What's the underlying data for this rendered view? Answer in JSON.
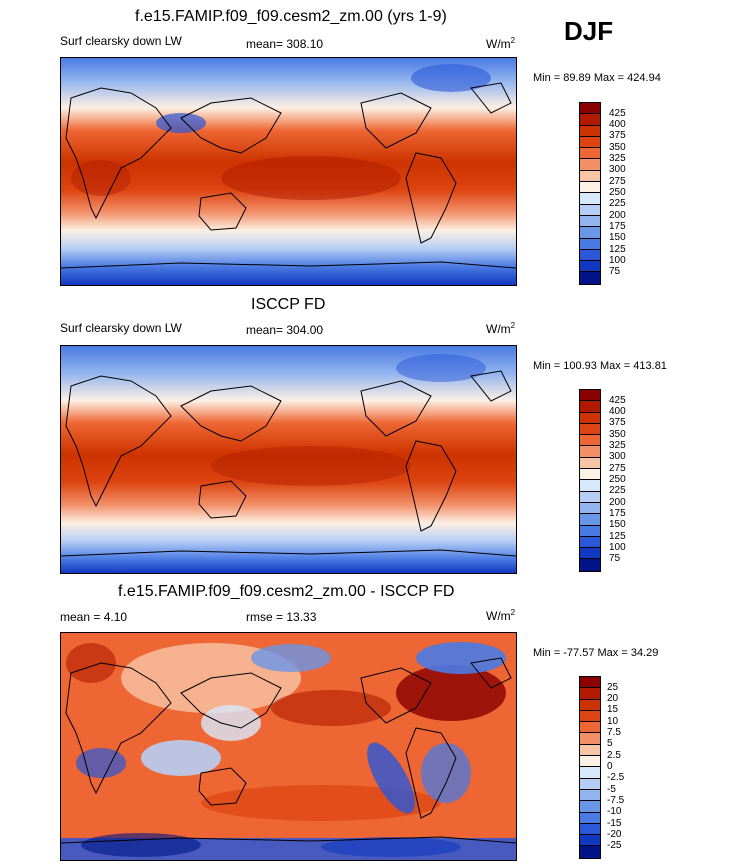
{
  "header": {
    "season": "DJF"
  },
  "colors": {
    "abs_scale": [
      "#8b0000",
      "#b01a00",
      "#cc3300",
      "#dd4411",
      "#ee6633",
      "#f2906a",
      "#f8c4a6",
      "#fdf0e4",
      "#d8e8fb",
      "#b6cef5",
      "#92b4ef",
      "#6a96e8",
      "#4a7ae3",
      "#2a58d8",
      "#1038c0",
      "#001488"
    ],
    "diff_scale": [
      "#8b0000",
      "#b01a00",
      "#cc3300",
      "#dd4411",
      "#ee6633",
      "#f2906a",
      "#f8c4a6",
      "#fdf0e4",
      "#d8e8fb",
      "#b6cef5",
      "#92b4ef",
      "#6a96e8",
      "#4a7ae3",
      "#2a58d8",
      "#1038c0",
      "#001488"
    ]
  },
  "panels": [
    {
      "title": "f.e15.FAMIP.f09_f09.cesm2_zm.00 (yrs 1-9)",
      "left_label": "Surf clearsky down LW",
      "center_label": "mean= 308.10",
      "units": "W/m",
      "units_sup": "2",
      "minmax": "Min =  89.89 Max = 424.94",
      "colorbar_labels": [
        "425",
        "400",
        "375",
        "350",
        "325",
        "300",
        "275",
        "250",
        "225",
        "200",
        "175",
        "150",
        "125",
        "100",
        "75"
      ]
    },
    {
      "title": "ISCCP FD",
      "left_label": "Surf clearsky down LW",
      "center_label": "mean= 304.00",
      "units": "W/m",
      "units_sup": "2",
      "minmax": "Min = 100.93 Max = 413.81",
      "colorbar_labels": [
        "425",
        "400",
        "375",
        "350",
        "325",
        "300",
        "275",
        "250",
        "225",
        "200",
        "175",
        "150",
        "125",
        "100",
        "75"
      ]
    },
    {
      "title": "f.e15.FAMIP.f09_f09.cesm2_zm.00 - ISCCP FD",
      "left_label": "mean =   4.10",
      "center_label": "rmse =  13.33",
      "units": "W/m",
      "units_sup": "2",
      "minmax": "Min = -77.57 Max =  34.29",
      "colorbar_labels": [
        "25",
        "20",
        "15",
        "10",
        "7.5",
        "5",
        "2.5",
        "0",
        "-2.5",
        "-5",
        "-7.5",
        "-10",
        "-15",
        "-20",
        "-25"
      ]
    }
  ]
}
